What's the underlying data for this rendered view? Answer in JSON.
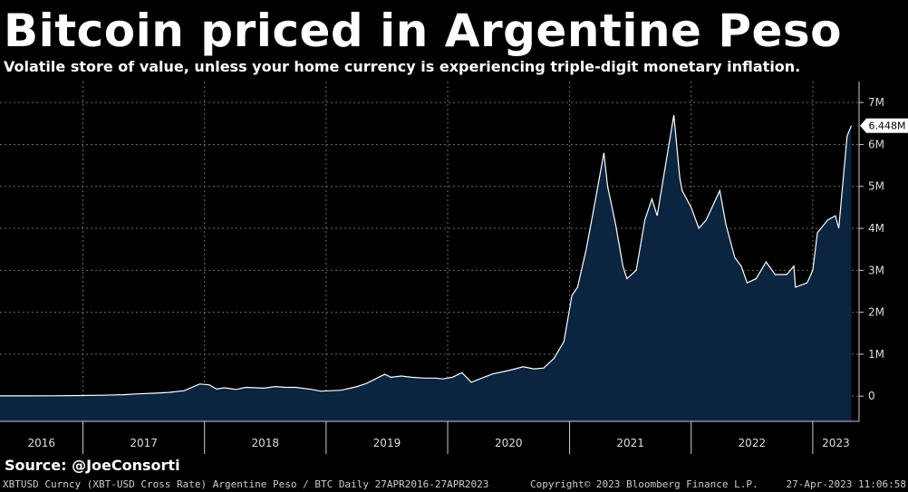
{
  "title": "Bitcoin priced in Argentine Peso",
  "subtitle": "Volatile store of value, unless your home currency is experiencing triple-digit monetary inflation.",
  "source": "Source: @JoeConsorti",
  "footer": {
    "left": "XBTUSD Curncy (XBT-USD Cross Rate) Argentine Peso / BTC  Daily 27APR2016-27APR2023",
    "mid": "Copyright© 2023 Bloomberg Finance L.P.",
    "right": "27-Apr-2023 11:06:58"
  },
  "colors": {
    "background": "#000000",
    "area_fill": "#0b2440",
    "line": "#ffffff",
    "grid": "#6b6b6b"
  },
  "chart_data": {
    "type": "area",
    "x_labels": [
      "2016",
      "2017",
      "2018",
      "2019",
      "2020",
      "2021",
      "2022",
      "2023"
    ],
    "y_ticks": [
      0,
      1000000,
      2000000,
      3000000,
      4000000,
      5000000,
      6000000,
      7000000
    ],
    "y_tick_labels": [
      "0",
      "1M",
      "2M",
      "3M",
      "4M",
      "5M",
      "6M",
      "7M"
    ],
    "ylim": [
      -600000,
      7500000
    ],
    "xlim": [
      "2016-04-27",
      "2023-05-20"
    ],
    "grid": true,
    "last_value_label": "6.448M",
    "series": [
      {
        "x": [
          "2016-04-27",
          "2016-07-01",
          "2016-10-01",
          "2017-01-01",
          "2017-03-01",
          "2017-05-01",
          "2017-06-15",
          "2017-08-01",
          "2017-09-15",
          "2017-11-01",
          "2017-12-17",
          "2018-01-15",
          "2018-02-06",
          "2018-03-01",
          "2018-04-06",
          "2018-05-05",
          "2018-06-29",
          "2018-08-01",
          "2018-09-01",
          "2018-10-01",
          "2018-11-20",
          "2018-12-15",
          "2019-01-15",
          "2019-02-15",
          "2019-04-01",
          "2019-05-01",
          "2019-06-26",
          "2019-07-15",
          "2019-08-15",
          "2019-09-15",
          "2019-10-25",
          "2019-11-25",
          "2019-12-17",
          "2020-01-15",
          "2020-02-13",
          "2020-03-12",
          "2020-04-15",
          "2020-05-15",
          "2020-07-01",
          "2020-08-15",
          "2020-09-15",
          "2020-10-15",
          "2020-11-15",
          "2020-12-15",
          "2021-01-08",
          "2021-01-25",
          "2021-02-20",
          "2021-03-13",
          "2021-04-14",
          "2021-04-25",
          "2021-05-19",
          "2021-06-10",
          "2021-06-22",
          "2021-07-20",
          "2021-08-15",
          "2021-09-05",
          "2021-09-21",
          "2021-10-20",
          "2021-11-10",
          "2021-11-28",
          "2021-12-05",
          "2022-01-01",
          "2022-01-24",
          "2022-02-15",
          "2022-03-28",
          "2022-04-15",
          "2022-05-12",
          "2022-05-31",
          "2022-06-18",
          "2022-07-15",
          "2022-08-14",
          "2022-09-10",
          "2022-10-15",
          "2022-11-05",
          "2022-11-10",
          "2022-12-15",
          "2023-01-01",
          "2023-01-15",
          "2023-02-15",
          "2023-03-10",
          "2023-03-20",
          "2023-04-14",
          "2023-04-27"
        ],
        "y": [
          6000,
          8000,
          10000,
          15000,
          22000,
          35000,
          55000,
          70000,
          90000,
          130000,
          290000,
          270000,
          170000,
          200000,
          160000,
          210000,
          190000,
          230000,
          210000,
          210000,
          160000,
          120000,
          130000,
          140000,
          220000,
          300000,
          520000,
          450000,
          480000,
          450000,
          430000,
          430000,
          410000,
          450000,
          560000,
          330000,
          440000,
          530000,
          610000,
          700000,
          650000,
          670000,
          900000,
          1300000,
          2400000,
          2600000,
          3500000,
          4400000,
          5800000,
          5000000,
          4100000,
          3100000,
          2800000,
          3000000,
          4200000,
          4700000,
          4300000,
          5700000,
          6700000,
          5200000,
          4900000,
          4500000,
          4000000,
          4200000,
          4900000,
          4100000,
          3300000,
          3100000,
          2700000,
          2800000,
          3200000,
          2900000,
          2900000,
          3100000,
          2600000,
          2700000,
          3000000,
          3900000,
          4200000,
          4300000,
          4000000,
          6200000,
          6448000
        ]
      }
    ]
  }
}
